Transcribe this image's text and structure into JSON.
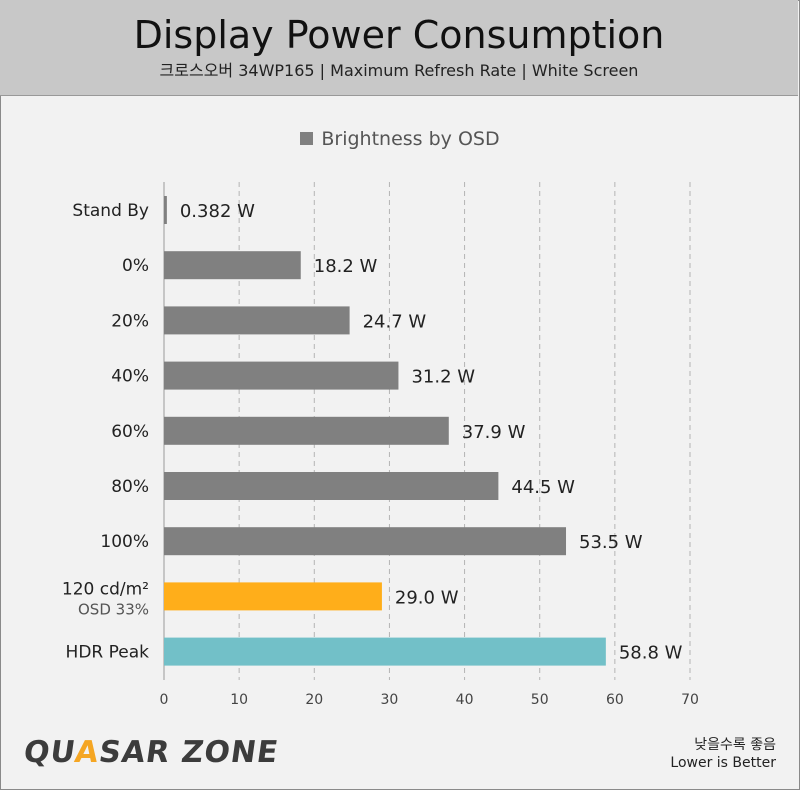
{
  "header": {
    "title": "Display Power Consumption",
    "subtitle": "크로스오버 34WP165  |  Maximum Refresh Rate  |  White Screen"
  },
  "legend": {
    "label": "Brightness by OSD",
    "color": "#808080"
  },
  "chart_data": {
    "type": "bar",
    "orientation": "horizontal",
    "categories": [
      {
        "label": "Stand By"
      },
      {
        "label": "0%"
      },
      {
        "label": "20%"
      },
      {
        "label": "40%"
      },
      {
        "label": "60%"
      },
      {
        "label": "80%"
      },
      {
        "label": "100%"
      },
      {
        "label": "120 cd/m²",
        "sublabel": "OSD 33%"
      },
      {
        "label": "HDR Peak"
      }
    ],
    "values": [
      0.382,
      18.2,
      24.7,
      31.2,
      37.9,
      44.5,
      53.5,
      29.0,
      58.8
    ],
    "value_labels": [
      "0.382 W",
      "18.2 W",
      "24.7 W",
      "31.2 W",
      "37.9 W",
      "44.5 W",
      "53.5 W",
      "29.0 W",
      "58.8 W"
    ],
    "colors": [
      "#808080",
      "#808080",
      "#808080",
      "#808080",
      "#808080",
      "#808080",
      "#808080",
      "#ffae1a",
      "#72c0c8"
    ],
    "series": [
      {
        "name": "Brightness by OSD",
        "values": [
          0.382,
          18.2,
          24.7,
          31.2,
          37.9,
          44.5,
          53.5,
          29.0,
          58.8
        ]
      }
    ],
    "xlim": [
      0,
      70
    ],
    "xticks": [
      0,
      10,
      20,
      30,
      40,
      50,
      60,
      70
    ],
    "grid": true,
    "legend_position": "top-center"
  },
  "footer": {
    "note_korean": "낮을수록 좋음",
    "note_english": "Lower is Better",
    "logo_text_1": "QU",
    "logo_text_accent": "A",
    "logo_text_2": "SAR ZONE"
  }
}
